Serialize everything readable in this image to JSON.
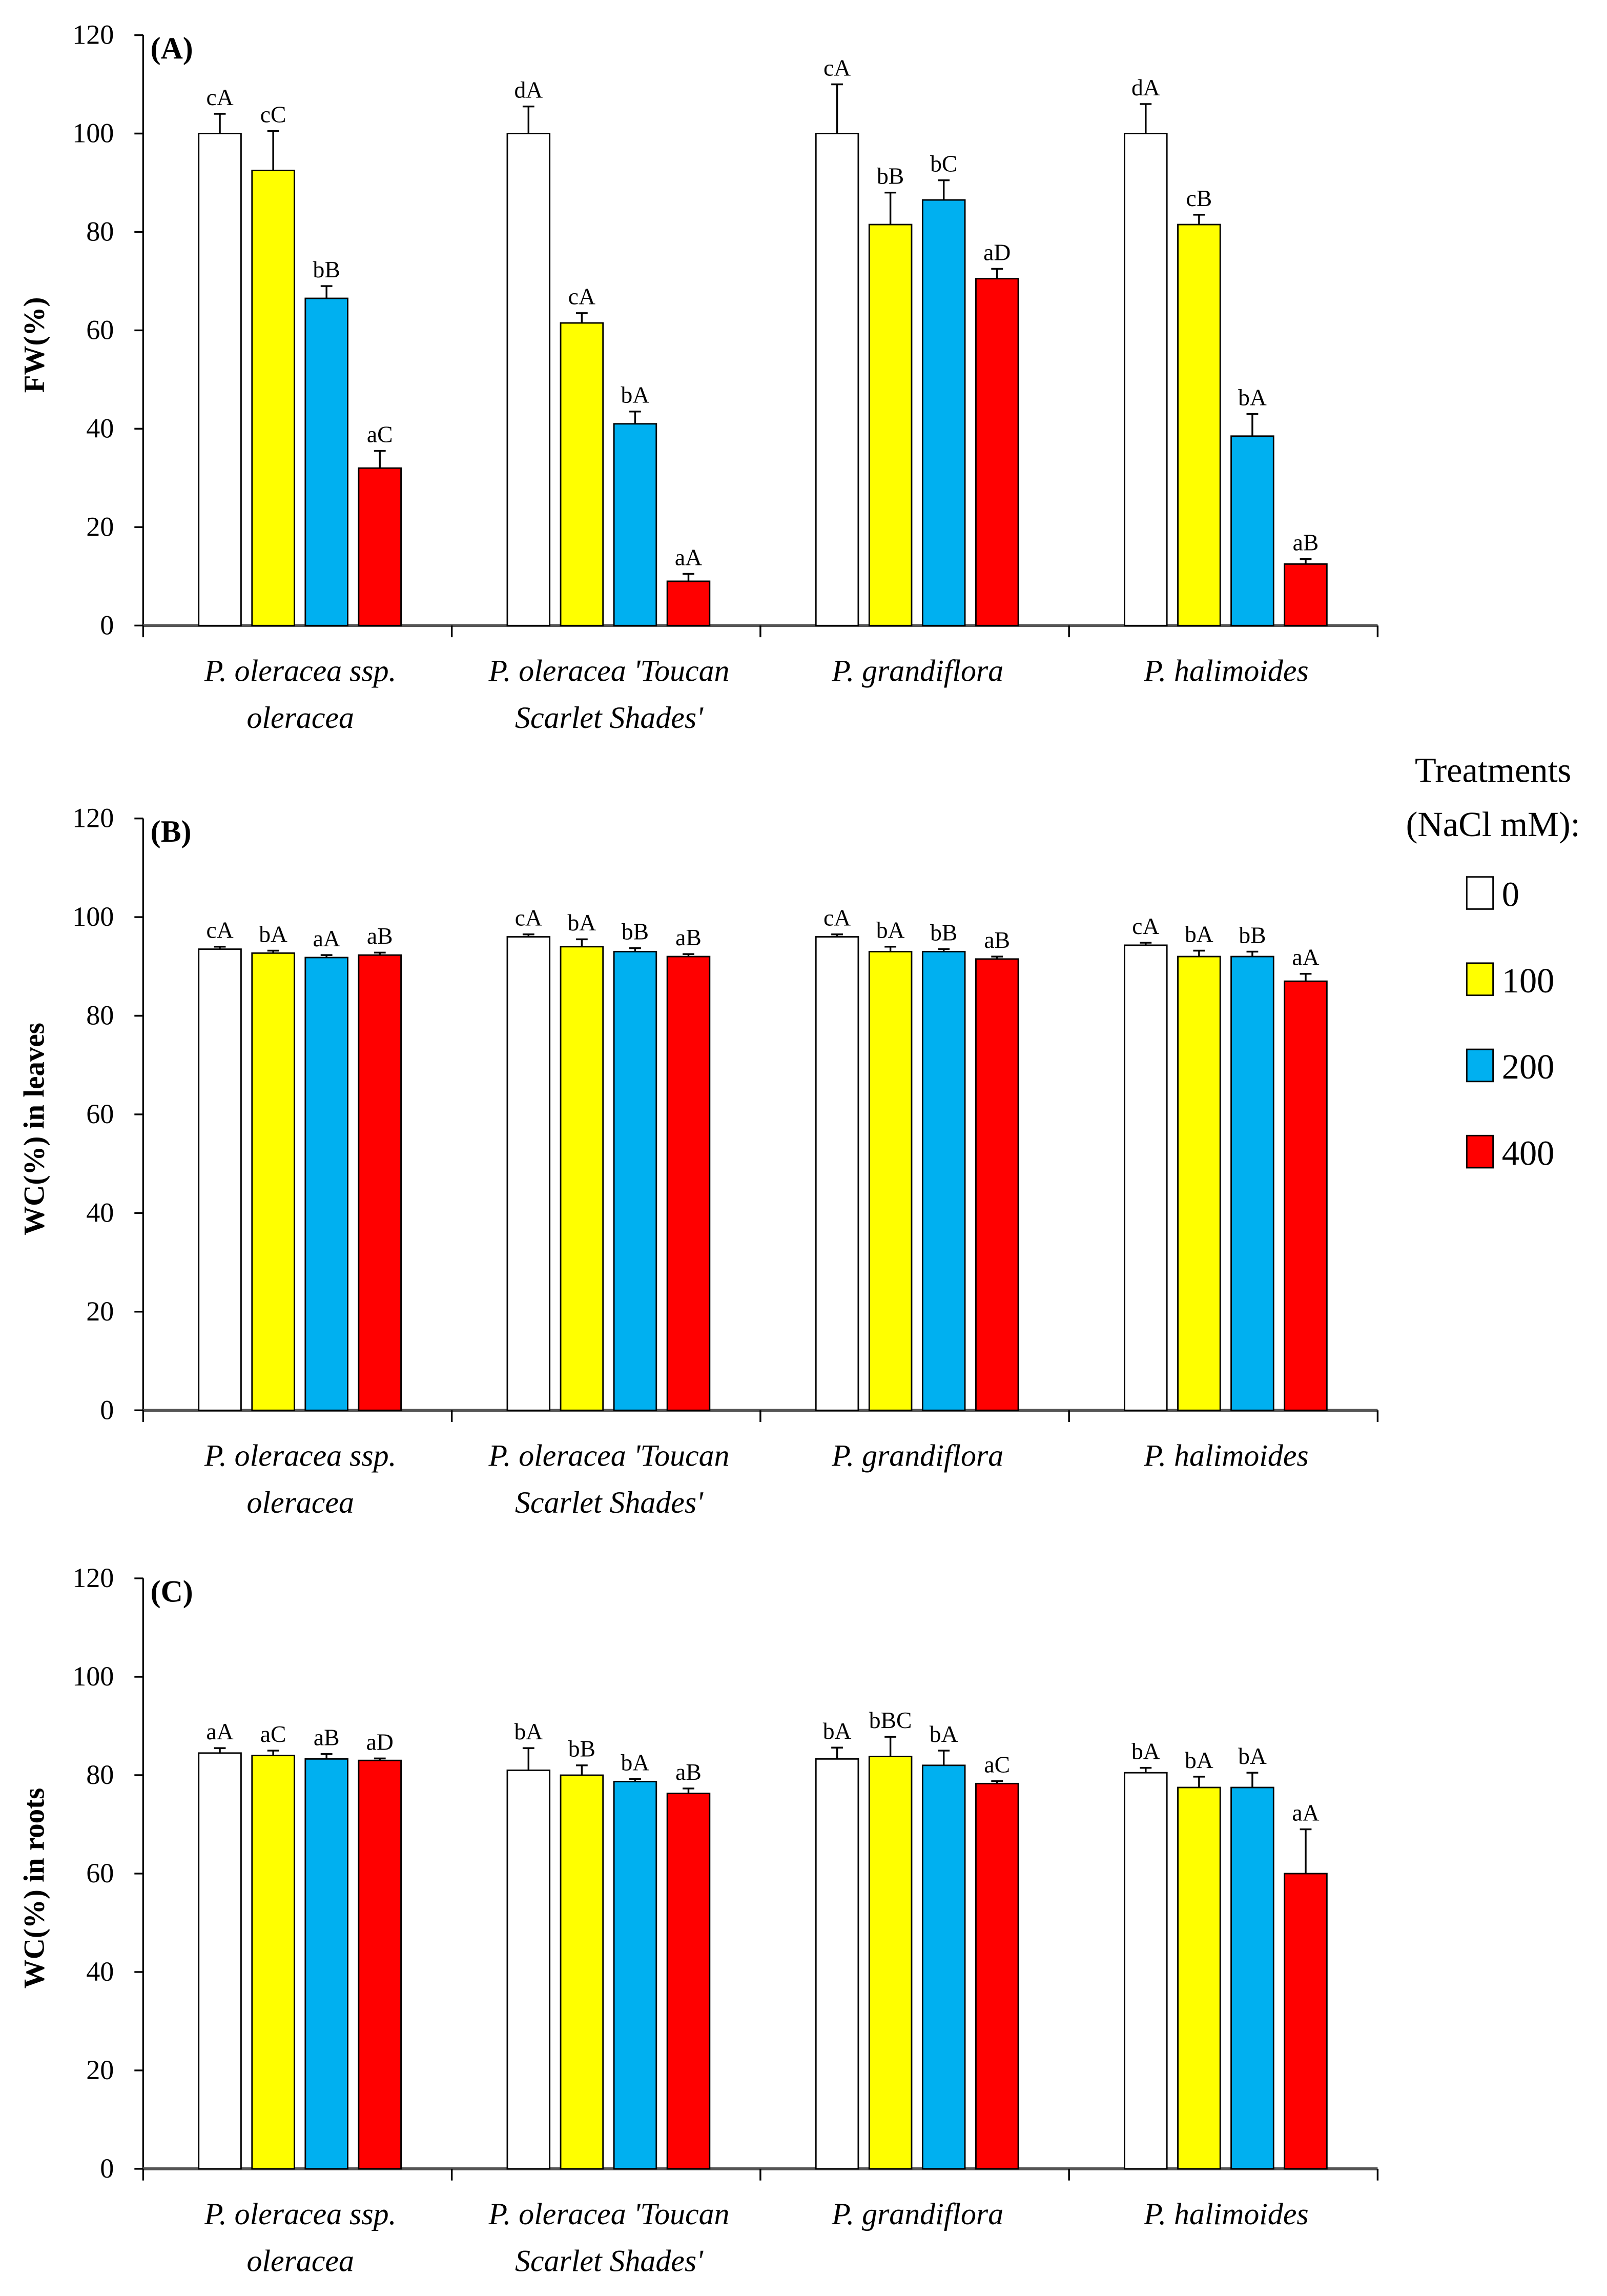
{
  "legend": {
    "title_line1": "Treatments",
    "title_line2": "(NaCl mM):",
    "items": [
      {
        "label": "0",
        "color": "#ffffff"
      },
      {
        "label": "100",
        "color": "#ffff00"
      },
      {
        "label": "200",
        "color": "#00b0f0"
      },
      {
        "label": "400",
        "color": "#ff0000"
      }
    ]
  },
  "categories": [
    [
      "P. oleracea ssp.",
      "oleracea"
    ],
    [
      "P. oleracea 'Toucan",
      "Scarlet Shades'"
    ],
    [
      "P. grandiflora",
      ""
    ],
    [
      "P. halimoides",
      ""
    ]
  ],
  "chart_data": [
    {
      "type": "bar",
      "panel_label": "(A)",
      "ylabel": "FW(%)",
      "ylim": [
        0,
        120
      ],
      "yticks": [
        0,
        20,
        40,
        60,
        80,
        100,
        120
      ],
      "series_names": [
        "0",
        "100",
        "200",
        "400"
      ],
      "values": [
        [
          100,
          92.5,
          66.5,
          32
        ],
        [
          100,
          61.5,
          41,
          9
        ],
        [
          100,
          81.5,
          86.5,
          70.5
        ],
        [
          100,
          81.5,
          38.5,
          12.5
        ]
      ],
      "errors": [
        [
          4,
          8,
          2.5,
          3.5
        ],
        [
          5.5,
          2,
          2.5,
          1.5
        ],
        [
          10,
          6.5,
          4,
          2
        ],
        [
          6,
          2,
          4.5,
          1
        ]
      ],
      "labels": [
        [
          "cA",
          "cC",
          "bB",
          "aC"
        ],
        [
          "dA",
          "cA",
          "bA",
          "aA"
        ],
        [
          "cA",
          "bB",
          "bC",
          "aD"
        ],
        [
          "dA",
          "cB",
          "bA",
          "aB"
        ]
      ]
    },
    {
      "type": "bar",
      "panel_label": "(B)",
      "ylabel": "WC(%) in leaves",
      "ylim": [
        0,
        120
      ],
      "yticks": [
        0,
        20,
        40,
        60,
        80,
        100,
        120
      ],
      "series_names": [
        "0",
        "100",
        "200",
        "400"
      ],
      "values": [
        [
          93.5,
          92.7,
          91.8,
          92.3
        ],
        [
          96,
          94,
          93,
          92
        ],
        [
          96,
          93,
          93,
          91.5
        ],
        [
          94.3,
          92,
          92,
          87
        ]
      ],
      "errors": [
        [
          0.5,
          0.5,
          0.5,
          0.5
        ],
        [
          0.5,
          1.5,
          0.7,
          0.5
        ],
        [
          0.5,
          1,
          0.5,
          0.5
        ],
        [
          0.5,
          1.2,
          1,
          1.5
        ]
      ],
      "labels": [
        [
          "cA",
          "bA",
          "aA",
          "aB"
        ],
        [
          "cA",
          "bA",
          "bB",
          "aB"
        ],
        [
          "cA",
          "bA",
          "bB",
          "aB"
        ],
        [
          "cA",
          "bA",
          "bB",
          "aA"
        ]
      ]
    },
    {
      "type": "bar",
      "panel_label": "(C)",
      "ylabel": "WC(%) in roots",
      "ylim": [
        0,
        120
      ],
      "yticks": [
        0,
        20,
        40,
        60,
        80,
        100,
        120
      ],
      "series_names": [
        "0",
        "100",
        "200",
        "400"
      ],
      "values": [
        [
          84.5,
          84,
          83.3,
          83
        ],
        [
          81,
          80,
          78.7,
          76.3
        ],
        [
          83.3,
          83.8,
          82,
          78.3
        ],
        [
          80.5,
          77.5,
          77.5,
          60
        ]
      ],
      "errors": [
        [
          1,
          1,
          1,
          0.4
        ],
        [
          4.5,
          2,
          0.5,
          1
        ],
        [
          2.3,
          4,
          3,
          0.5
        ],
        [
          1,
          2.2,
          3,
          9
        ]
      ],
      "labels": [
        [
          "aA",
          "aC",
          "aB",
          "aD"
        ],
        [
          "bA",
          "bB",
          "bA",
          "aB"
        ],
        [
          "bA",
          "bBC",
          "bA",
          "aC"
        ],
        [
          "bA",
          "bA",
          "bA",
          "aA"
        ]
      ]
    }
  ]
}
